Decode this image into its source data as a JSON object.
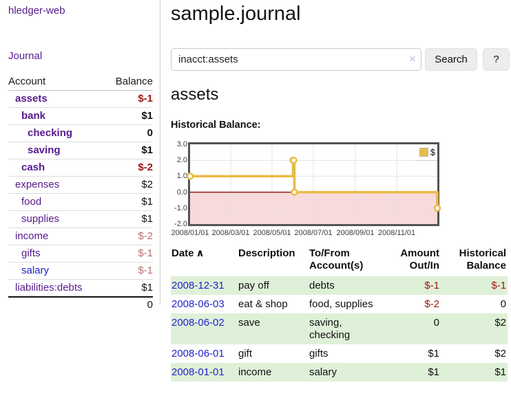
{
  "colors": {
    "purple_link": "#551a8b",
    "blue_link": "#2323cc",
    "negative_strong": "#9e1414",
    "negative_soft": "#b96f6f",
    "row_green": "#dff0d8",
    "chart_line": "#e8bc45",
    "chart_negative_fill": "#f9dada",
    "chart_zero_line": "#8b1a1a",
    "chart_grid": "#e2e2e2",
    "button_bg": "#ededed"
  },
  "sidebar": {
    "brand": "hledger-web",
    "journal_link": "Journal",
    "accounts": {
      "headers": {
        "account": "Account",
        "balance": "Balance"
      },
      "rows": [
        {
          "name": "assets",
          "balance": "$-1"
        },
        {
          "name": "bank",
          "balance": "$1"
        },
        {
          "name": "checking",
          "balance": "0"
        },
        {
          "name": "saving",
          "balance": "$1"
        },
        {
          "name": "cash",
          "balance": "$-2"
        },
        {
          "name": "expenses",
          "balance": "$2"
        },
        {
          "name": "food",
          "balance": "$1"
        },
        {
          "name": "supplies",
          "balance": "$1"
        },
        {
          "name": "income",
          "balance": "$-2"
        },
        {
          "name": "gifts",
          "balance": "$-1"
        },
        {
          "name": "salary",
          "balance": "$-1"
        },
        {
          "name": "liabilities:debts",
          "balance": "$1"
        }
      ],
      "total": "0"
    }
  },
  "main": {
    "title": "sample.journal",
    "search": {
      "query": "inacct:assets",
      "clear_icon": "×",
      "button": "Search",
      "help_button": "?"
    },
    "account_heading": "assets",
    "chart_title": "Historical Balance:"
  },
  "chart_data": {
    "type": "line",
    "line_style": "step",
    "title": "Historical Balance",
    "legend": [
      {
        "label": "$",
        "color": "#e8bc45"
      }
    ],
    "legend_position": "top-right",
    "x_range": [
      "2008-01-01",
      "2008-12-31"
    ],
    "ylim": [
      -2.0,
      3.0
    ],
    "y_ticks": [
      3.0,
      2.0,
      1.0,
      0.0,
      -1.0,
      -2.0
    ],
    "x_tick_labels": [
      "2008/01/01",
      "2008/03/01",
      "2008/05/01",
      "2008/07/01",
      "2008/09/01",
      "2008/11/01"
    ],
    "grid": true,
    "series": [
      {
        "name": "$",
        "points": [
          [
            "2008-01-01",
            1
          ],
          [
            "2008-06-01",
            2
          ],
          [
            "2008-06-02",
            2
          ],
          [
            "2008-06-03",
            0
          ],
          [
            "2008-12-31",
            -1
          ]
        ]
      }
    ]
  },
  "register": {
    "headers": {
      "date": "Date",
      "sort_arrow": "∧",
      "description": "Description",
      "accounts": "To/From Account(s)",
      "amount": "Amount Out/In",
      "balance": "Historical Balance"
    },
    "rows": [
      {
        "date": "2008-12-31",
        "description": "pay off",
        "accounts": "debts",
        "amount": "$-1",
        "balance": "$-1"
      },
      {
        "date": "2008-06-03",
        "description": "eat & shop",
        "accounts": "food, supplies",
        "amount": "$-2",
        "balance": "0"
      },
      {
        "date": "2008-06-02",
        "description": "save",
        "accounts": "saving, checking",
        "amount": "0",
        "balance": "$2"
      },
      {
        "date": "2008-06-01",
        "description": "gift",
        "accounts": "gifts",
        "amount": "$1",
        "balance": "$2"
      },
      {
        "date": "2008-01-01",
        "description": "income",
        "accounts": "salary",
        "amount": "$1",
        "balance": "$1"
      }
    ]
  }
}
